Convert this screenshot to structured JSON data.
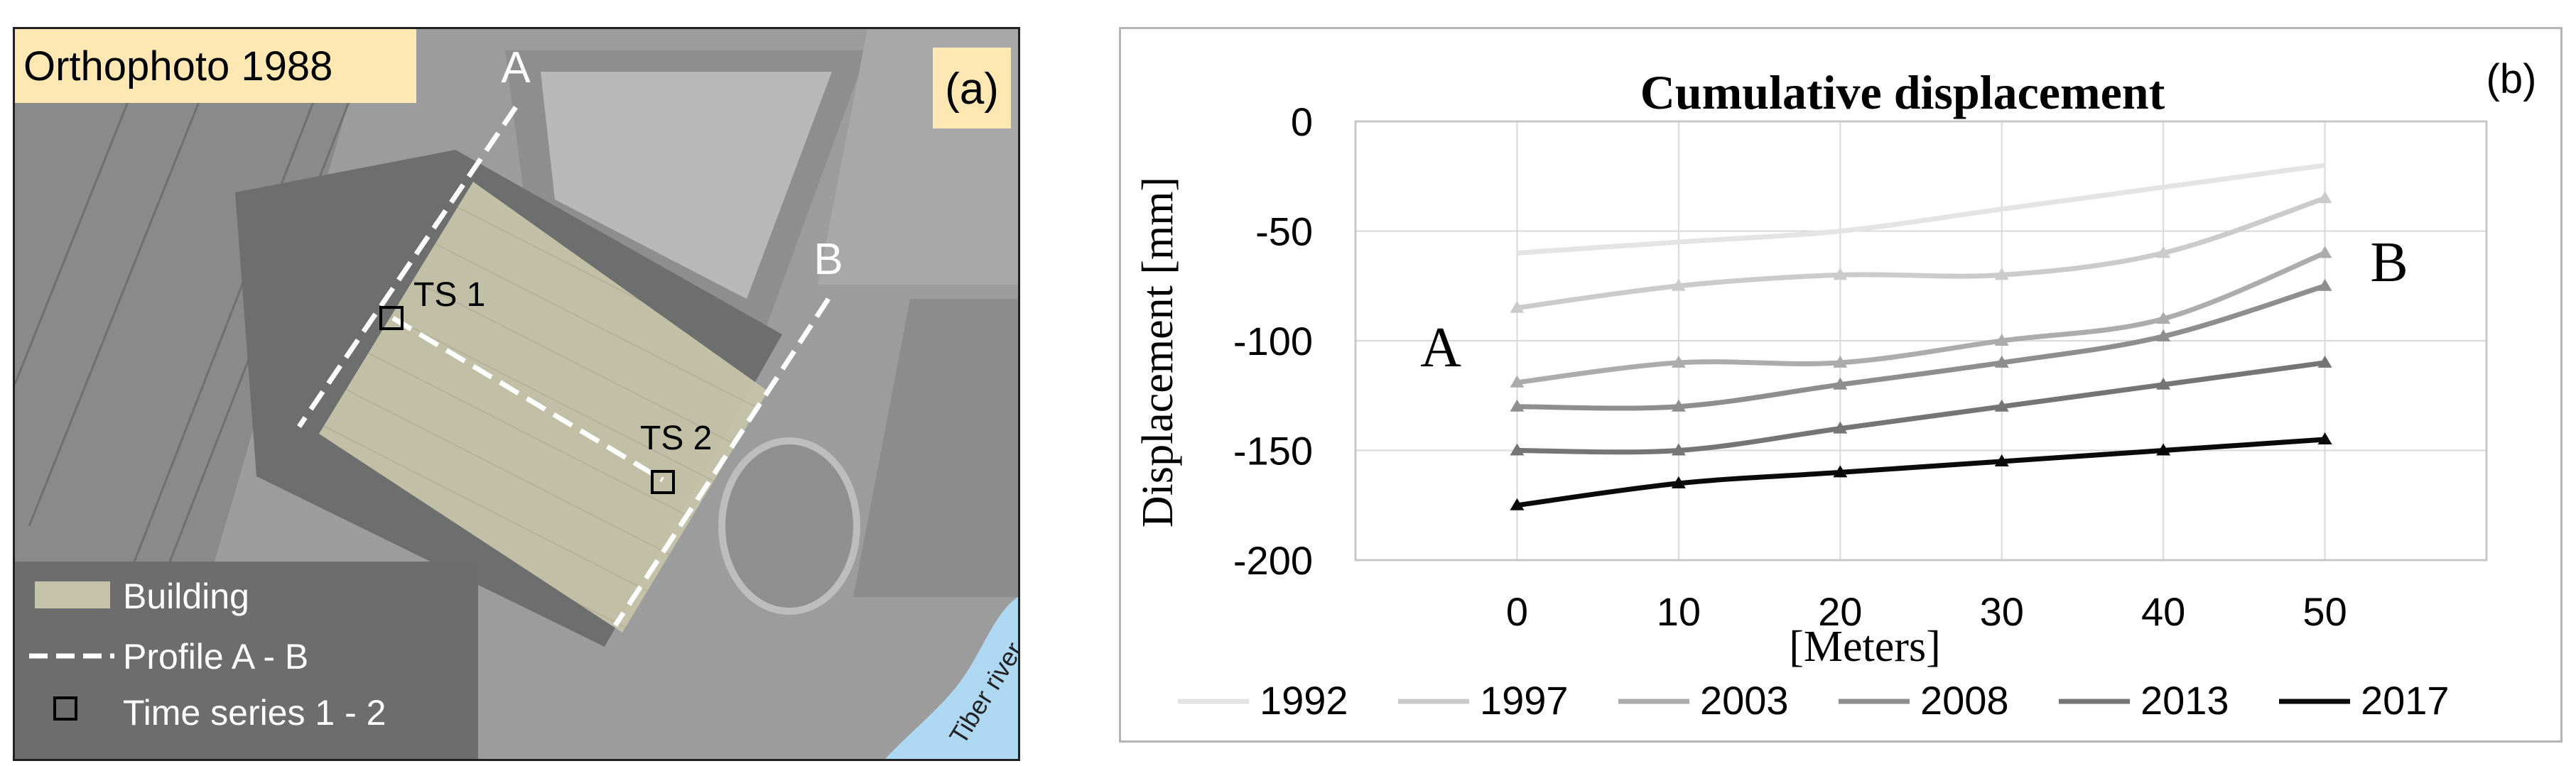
{
  "panel_a": {
    "title": "Orthophoto 1988",
    "panel_label": "(a)",
    "point_a": "A",
    "point_b": "B",
    "ts1": "TS 1",
    "ts2": "TS 2",
    "river_label": "Tiber river",
    "legend": {
      "building": "Building",
      "profile": "Profile A - B",
      "time_series": "Time series 1 - 2"
    },
    "colors": {
      "building_fill": "#c5c3a9",
      "river": "#aed8f2",
      "label_bg": "#fde8b4"
    }
  },
  "panel_b": {
    "panel_label": "(b)",
    "left_marker": "A",
    "right_marker": "B"
  },
  "chart_data": {
    "type": "line",
    "title": "Cumulative displacement",
    "xlabel": "[Meters]",
    "ylabel": "Displacement [mm]",
    "x": [
      0,
      10,
      20,
      30,
      40,
      50
    ],
    "xticks": [
      "0",
      "10",
      "20",
      "30",
      "40",
      "50"
    ],
    "xlim": [
      -10,
      60
    ],
    "ylim": [
      -200,
      0
    ],
    "yticks": [
      "0",
      "-50",
      "-100",
      "-150",
      "-200"
    ],
    "ytick_values": [
      0,
      -50,
      -100,
      -150,
      -200
    ],
    "grid": true,
    "legend_position": "bottom",
    "series": [
      {
        "name": "1992",
        "values": [
          -60,
          -55,
          -50,
          -40,
          -30,
          -20
        ],
        "color": "#e4e4e4",
        "marker": "none"
      },
      {
        "name": "1997",
        "values": [
          -85,
          -75,
          -70,
          -70,
          -60,
          -35
        ],
        "color": "#cbcbcb",
        "marker": "triangle"
      },
      {
        "name": "2003",
        "values": [
          -119,
          -110,
          -110,
          -100,
          -90,
          -60
        ],
        "color": "#acacac",
        "marker": "triangle"
      },
      {
        "name": "2008",
        "values": [
          -130,
          -130,
          -120,
          -110,
          -98,
          -75
        ],
        "color": "#8e8e8e",
        "marker": "triangle"
      },
      {
        "name": "2013",
        "values": [
          -150,
          -150,
          -140,
          -130,
          -120,
          -110
        ],
        "color": "#757575",
        "marker": "triangle"
      },
      {
        "name": "2017",
        "values": [
          -175,
          -165,
          -160,
          -155,
          -150,
          -145
        ],
        "color": "#0a0a0a",
        "marker": "triangle"
      }
    ]
  }
}
